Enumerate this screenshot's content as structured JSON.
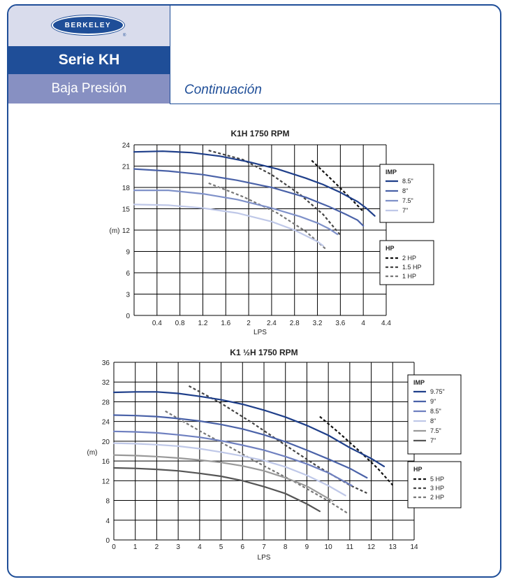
{
  "header": {
    "logo_text": "BERKELEY",
    "logo_reg": "®",
    "series": "Serie KH",
    "subtitle": "Baja Presión",
    "continuation": "Continuación"
  },
  "colors": {
    "brand_blue": "#1f4e98",
    "subtitle_bg": "#8790c2",
    "logo_bg": "#d9dcec"
  },
  "chart_data": [
    {
      "type": "line",
      "title": "K1H 1750 RPM",
      "xlabel": "LPS",
      "ylabel": "(m)",
      "xlim": [
        0,
        4.4
      ],
      "ylim": [
        0,
        24
      ],
      "xticks": [
        0.4,
        0.8,
        1.2,
        1.6,
        2,
        2.4,
        2.8,
        3.2,
        3.6,
        4,
        4.4
      ],
      "xtick_labels": [
        "0.4",
        "0.8",
        "1.2",
        "1.6",
        "2",
        "2.4",
        "2.8",
        "3.2",
        "3.6",
        "4",
        "4.4"
      ],
      "yticks": [
        0,
        3,
        6,
        9,
        12,
        15,
        18,
        21,
        24
      ],
      "ytick_labels": [
        "0",
        "3",
        "6",
        "9",
        "12",
        "15",
        "18",
        "21",
        "24"
      ],
      "grid": true,
      "legend_position": "right",
      "imp_legend_title": "IMP",
      "hp_legend_title": "HP",
      "series": [
        {
          "name": "8.5\"",
          "color": "#1f3f8a",
          "x": [
            0,
            0.5,
            1.0,
            1.5,
            2.0,
            2.5,
            3.0,
            3.3,
            3.6,
            3.9,
            4.05,
            4.2
          ],
          "y": [
            23.0,
            23.1,
            22.9,
            22.4,
            21.6,
            20.6,
            19.3,
            18.4,
            17.3,
            16.0,
            15.1,
            14.0
          ]
        },
        {
          "name": "8\"",
          "color": "#4a62a8",
          "x": [
            0,
            0.6,
            1.2,
            1.8,
            2.4,
            3.0,
            3.4,
            3.7,
            3.9,
            4.0
          ],
          "y": [
            20.6,
            20.3,
            19.8,
            19.0,
            18.0,
            16.6,
            15.3,
            14.2,
            13.4,
            12.6
          ]
        },
        {
          "name": "7.5\"",
          "color": "#7f91c9",
          "x": [
            0,
            0.6,
            1.2,
            1.8,
            2.4,
            2.9,
            3.2,
            3.4,
            3.55
          ],
          "y": [
            17.6,
            17.6,
            17.1,
            16.3,
            15.1,
            13.9,
            13.0,
            12.2,
            11.4
          ]
        },
        {
          "name": "7\"",
          "color": "#bfc8e8",
          "x": [
            0,
            0.6,
            1.2,
            1.8,
            2.4,
            2.8,
            3.0,
            3.2,
            3.3
          ],
          "y": [
            15.6,
            15.5,
            15.1,
            14.4,
            13.2,
            12.0,
            11.2,
            10.4,
            9.8
          ]
        }
      ],
      "hp_series": [
        {
          "name": "2 HP",
          "color": "#111111",
          "x": [
            3.1,
            3.5,
            3.8,
            4.0
          ],
          "y": [
            21.8,
            18.7,
            16.3,
            14.6
          ]
        },
        {
          "name": "1.5 HP",
          "color": "#444444",
          "x": [
            1.3,
            1.9,
            2.4,
            2.9,
            3.3,
            3.6
          ],
          "y": [
            23.2,
            21.9,
            19.8,
            17.0,
            14.2,
            11.3
          ]
        },
        {
          "name": "1 HP",
          "color": "#777777",
          "x": [
            1.3,
            1.9,
            2.5,
            3.0,
            3.35
          ],
          "y": [
            18.6,
            16.7,
            14.4,
            11.8,
            9.3
          ]
        }
      ]
    },
    {
      "type": "line",
      "title": "K1 ½H 1750 RPM",
      "xlabel": "LPS",
      "ylabel": "(m)",
      "xlim": [
        0,
        14
      ],
      "ylim": [
        0,
        36
      ],
      "xticks": [
        0,
        1,
        2,
        3,
        4,
        5,
        6,
        7,
        8,
        9,
        10,
        11,
        12,
        13,
        14
      ],
      "xtick_labels": [
        "0",
        "1",
        "2",
        "3",
        "4",
        "5",
        "6",
        "7",
        "8",
        "9",
        "10",
        "11",
        "12",
        "13",
        "14"
      ],
      "yticks": [
        0,
        4,
        8,
        12,
        16,
        20,
        24,
        28,
        32,
        36
      ],
      "ytick_labels": [
        "0",
        "4",
        "8",
        "12",
        "16",
        "20",
        "24",
        "28",
        "32",
        "36"
      ],
      "grid": true,
      "legend_position": "right",
      "imp_legend_title": "IMP",
      "hp_legend_title": "HP",
      "series": [
        {
          "name": "9.75\"",
          "color": "#1f3f8a",
          "x": [
            0,
            1,
            2,
            3,
            4,
            5,
            6,
            7,
            8,
            9,
            10,
            11,
            12,
            12.6
          ],
          "y": [
            29.9,
            30.0,
            30.0,
            29.7,
            29.1,
            28.4,
            27.5,
            26.3,
            24.9,
            23.2,
            21.2,
            18.7,
            16.5,
            14.9
          ]
        },
        {
          "name": "9\"",
          "color": "#4a62a8",
          "x": [
            0,
            1,
            2,
            3,
            4,
            5,
            6,
            7,
            8,
            9,
            10,
            11,
            11.8
          ],
          "y": [
            25.3,
            25.2,
            25.0,
            24.6,
            24.1,
            23.4,
            22.5,
            21.3,
            19.9,
            18.2,
            16.4,
            14.5,
            12.6
          ]
        },
        {
          "name": "8.5\"",
          "color": "#6f80c0",
          "x": [
            0,
            1,
            2,
            3,
            4,
            5,
            6,
            7,
            8,
            9,
            10,
            11.1
          ],
          "y": [
            22.0,
            21.9,
            21.7,
            21.3,
            20.8,
            20.1,
            19.2,
            18.2,
            16.9,
            15.4,
            13.6,
            11.0
          ]
        },
        {
          "name": "8\"",
          "color": "#bfc8e8",
          "x": [
            0,
            1,
            2,
            3,
            4,
            5,
            6,
            7,
            8,
            9,
            10,
            10.8
          ],
          "y": [
            19.6,
            19.5,
            19.3,
            19.0,
            18.5,
            17.8,
            17.0,
            16.1,
            14.8,
            13.1,
            11.0,
            9.0
          ]
        },
        {
          "name": "7.5\"",
          "color": "#999999",
          "x": [
            0,
            1,
            2,
            3,
            4,
            5,
            6,
            7,
            8,
            9,
            10.2
          ],
          "y": [
            17.2,
            17.1,
            16.9,
            16.6,
            16.2,
            15.7,
            15.0,
            14.0,
            12.6,
            10.9,
            7.9
          ]
        },
        {
          "name": "7\"",
          "color": "#555555",
          "x": [
            0,
            1,
            2,
            3,
            4,
            5,
            6,
            7,
            8,
            9,
            9.6
          ],
          "y": [
            14.6,
            14.5,
            14.3,
            14.0,
            13.5,
            12.9,
            12.0,
            10.8,
            9.4,
            7.3,
            5.8
          ]
        }
      ],
      "hp_series": [
        {
          "name": "5 HP",
          "color": "#111111",
          "x": [
            9.6,
            10.5,
            11.5,
            12.3,
            13.0
          ],
          "y": [
            25.0,
            21.7,
            17.8,
            14.5,
            11.1
          ]
        },
        {
          "name": "3 HP",
          "color": "#444444",
          "x": [
            3.5,
            5,
            6.5,
            8,
            9.5,
            11,
            11.8
          ],
          "y": [
            31.2,
            27.7,
            23.6,
            19.2,
            14.9,
            11.1,
            9.5
          ]
        },
        {
          "name": "2 HP",
          "color": "#777777",
          "x": [
            2.4,
            4,
            5.5,
            7,
            8.5,
            10,
            10.9
          ],
          "y": [
            26.1,
            22.1,
            18.6,
            15.0,
            11.6,
            7.9,
            5.4
          ]
        }
      ]
    }
  ]
}
